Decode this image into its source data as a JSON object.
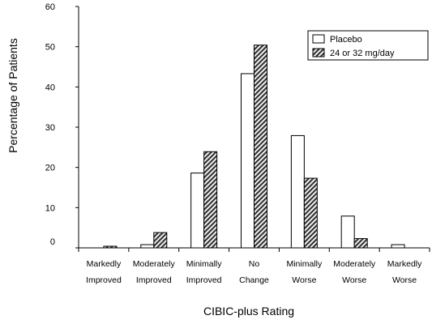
{
  "chart_data": {
    "type": "bar",
    "title": "",
    "xlabel": "CIBIC-plus Rating",
    "ylabel": "Percentage of Patients",
    "ylim": [
      0,
      60
    ],
    "yticks": [
      "0",
      "10",
      "20",
      "30",
      "40",
      "50",
      "60"
    ],
    "grid": false,
    "legend_position": "top-right",
    "categories": [
      [
        "Markedly",
        "Improved"
      ],
      [
        "Moderately",
        "Improved"
      ],
      [
        "Minimally",
        "Improved"
      ],
      [
        "No",
        "Change"
      ],
      [
        "Minimally",
        "Worse"
      ],
      [
        "Moderately",
        "Worse"
      ],
      [
        "Markedly",
        "Worse"
      ]
    ],
    "series": [
      {
        "name": "Placebo",
        "fill": "#ffffff",
        "pattern": "none",
        "values": [
          0,
          0.8,
          18.6,
          43.3,
          27.9,
          7.9,
          0.8
        ]
      },
      {
        "name": "24 or 32 mg/day",
        "fill": "#555555",
        "pattern": "diagonal-hatch",
        "values": [
          0.4,
          3.8,
          23.9,
          50.4,
          17.3,
          2.3,
          0
        ]
      }
    ]
  }
}
